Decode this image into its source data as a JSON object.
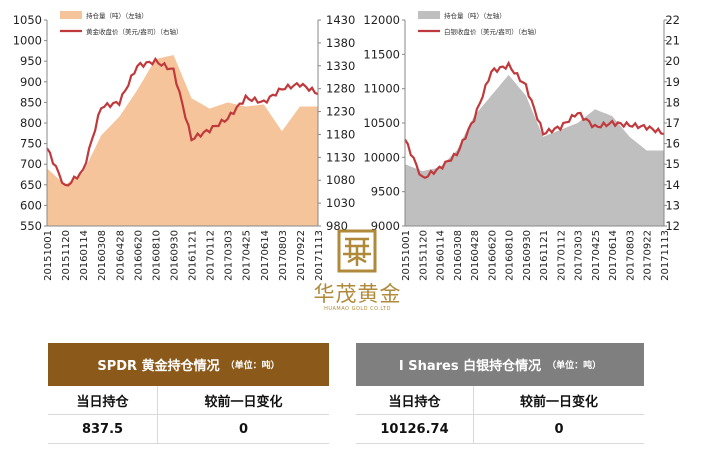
{
  "chart_data": [
    {
      "type": "area+line",
      "title": "",
      "dates": [
        "20151001",
        "20151120",
        "20160114",
        "20160308",
        "20160428",
        "20160620",
        "20160810",
        "20160930",
        "20161121",
        "20170112",
        "20170303",
        "20170425",
        "20170614",
        "20170803",
        "20170922",
        "20171113"
      ],
      "series": [
        {
          "name": "持仓量（吨）（左轴）",
          "kind": "area",
          "axis": "left",
          "color": "#f6c49a",
          "values": [
            690,
            650,
            680,
            770,
            815,
            880,
            955,
            965,
            860,
            835,
            850,
            840,
            845,
            780,
            840,
            840
          ]
        },
        {
          "name": "黄金收盘价（美元/盎司）（右轴）",
          "kind": "line",
          "axis": "right",
          "color": "#c0393c",
          "values": [
            1150,
            1065,
            1100,
            1240,
            1250,
            1330,
            1340,
            1320,
            1170,
            1190,
            1215,
            1260,
            1250,
            1280,
            1290,
            1270
          ]
        }
      ],
      "left_axis": {
        "min": 550,
        "max": 1050,
        "step": 50,
        "ticks": [
          "550",
          "600",
          "650",
          "700",
          "750",
          "800",
          "850",
          "900",
          "950",
          "1000",
          "1050"
        ]
      },
      "right_axis": {
        "min": 980,
        "max": 1430,
        "step": 50,
        "ticks": [
          "980",
          "1030",
          "1080",
          "1130",
          "1180",
          "1230",
          "1280",
          "1330",
          "1380",
          "1430"
        ]
      },
      "grid": false,
      "legend_position": "top-left"
    },
    {
      "type": "area+line",
      "title": "",
      "dates": [
        "20151001",
        "20151120",
        "20160114",
        "20160308",
        "20160428",
        "20160620",
        "20160810",
        "20160930",
        "20161121",
        "20170112",
        "20170303",
        "20170425",
        "20170614",
        "20170803",
        "20170922",
        "20171113"
      ],
      "series": [
        {
          "name": "持仓量（吨）（左轴）",
          "kind": "area",
          "axis": "left",
          "color": "#bfbfbf",
          "values": [
            9900,
            9800,
            9850,
            10100,
            10600,
            10900,
            11200,
            10900,
            10300,
            10400,
            10500,
            10700,
            10600,
            10300,
            10100,
            10100
          ]
        },
        {
          "name": "白银收盘价（美元/盎司）（右轴）",
          "kind": "line",
          "axis": "right",
          "color": "#c0393c",
          "values": [
            16.2,
            14.3,
            14.8,
            15.5,
            17.2,
            19.5,
            19.8,
            18.8,
            16.5,
            16.8,
            17.5,
            16.8,
            17.0,
            16.9,
            16.8,
            16.5
          ]
        }
      ],
      "left_axis": {
        "min": 9000,
        "max": 12000,
        "step": 500,
        "ticks": [
          "9000",
          "9500",
          "10000",
          "10500",
          "11000",
          "11500",
          "12000"
        ]
      },
      "right_axis": {
        "min": 12,
        "max": 22,
        "step": 1,
        "ticks": [
          "12",
          "13",
          "14",
          "15",
          "16",
          "17",
          "18",
          "19",
          "20",
          "21",
          "22"
        ]
      },
      "grid": false,
      "legend_position": "top-left"
    }
  ],
  "logo": {
    "title": "华茂黄金",
    "subtitle": "HUAMAO GOLD CO.LTD"
  },
  "spdr_card": {
    "title": "SPDR 黄金持仓情况",
    "unit": "（单位：吨）",
    "header_color": "#8b5a1b",
    "col1_label": "当日持仓",
    "col2_label": "较前一日变化",
    "holding": "837.5",
    "change": "0"
  },
  "ishares_card": {
    "title": "I Shares 白银持仓情况",
    "unit": "（单位：吨）",
    "header_color": "#7f7f7f",
    "col1_label": "当日持仓",
    "col2_label": "较前一日变化",
    "holding": "10126.74",
    "change": "0"
  }
}
